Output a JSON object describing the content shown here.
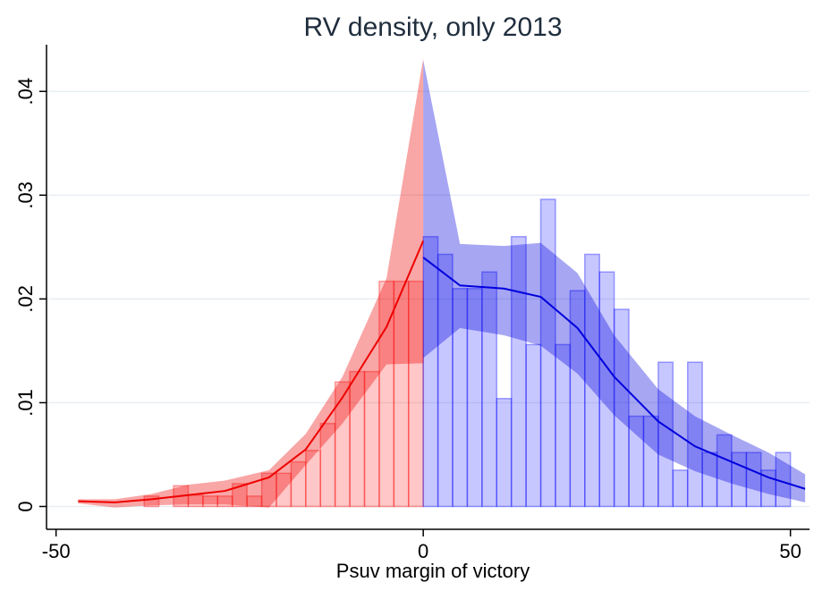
{
  "chart_data": {
    "type": "rd-density",
    "title": "RV density, only 2013",
    "x_label": "Psuv margin of victory",
    "xlim": [
      -51.3,
      52.6
    ],
    "ylim": [
      -0.0022,
      0.0445
    ],
    "xticks": [
      -50,
      0,
      50
    ],
    "yticks": [
      0,
      {
        "value": 0.01,
        "label": ".01"
      },
      {
        "value": 0.02,
        "label": ".02"
      },
      {
        "value": 0.03,
        "label": ".03"
      },
      {
        "value": 0.04,
        "label": ".04"
      }
    ],
    "grid": true,
    "bars": [
      {
        "color": "#ff0000",
        "bins": [
          -38,
          -36,
          -34,
          -32,
          -30,
          -28,
          -26,
          -24,
          -22,
          -20,
          -18,
          -16,
          -14,
          -12,
          -10,
          -8,
          -6,
          -4,
          -2,
          0
        ],
        "values": [
          0.001,
          0,
          0.002,
          0.0011,
          0.001,
          0.001,
          0.0022,
          0.001,
          0.0032,
          0.0032,
          0.0043,
          0.0054,
          0.008,
          0.012,
          0.013,
          0.013,
          0.0217,
          0.0217,
          0.0217
        ]
      },
      {
        "color": "#0000ff",
        "bins": [
          0,
          2,
          4,
          6,
          8,
          10,
          12,
          14,
          16,
          18,
          20,
          22,
          24,
          26,
          28,
          30,
          32,
          34,
          36,
          38,
          40,
          42,
          44,
          46,
          48,
          50
        ],
        "values": [
          0.026,
          0.0243,
          0.021,
          0.021,
          0.0226,
          0.0104,
          0.026,
          0.0156,
          0.0296,
          0.0156,
          0.0208,
          0.0243,
          0.0226,
          0.019,
          0.0087,
          0.0087,
          0.0139,
          0.0035,
          0.0139,
          0.0052,
          0.0069,
          0.0052,
          0.0052,
          0.0035,
          0.0052
        ]
      }
    ],
    "fits": [
      {
        "color": "#ee0000",
        "x": [
          -47,
          -42,
          -37,
          -32,
          -27,
          -21,
          -16,
          -11,
          -5,
          0
        ],
        "values": [
          0.0005,
          0.0004,
          0.0007,
          0.0011,
          0.0015,
          0.0028,
          0.0055,
          0.0105,
          0.0173,
          0.0256
        ],
        "lower": [
          0.0003,
          -0.0001,
          0.0001,
          0.0002,
          0.0002,
          -0.0001,
          0.004,
          0.008,
          0.0137,
          0.0138
        ],
        "upper": [
          0.0007,
          0.0007,
          0.0012,
          0.0021,
          0.0025,
          0.0035,
          0.007,
          0.0125,
          0.022,
          0.0432
        ]
      },
      {
        "color": "#0000dd",
        "x": [
          0,
          5,
          11,
          16,
          21,
          26,
          32,
          37,
          42,
          47,
          52
        ],
        "values": [
          0.024,
          0.0213,
          0.021,
          0.0202,
          0.0172,
          0.0125,
          0.0082,
          0.0058,
          0.0043,
          0.0028,
          0.0017
        ],
        "lower": [
          0.0143,
          0.0172,
          0.0165,
          0.0155,
          0.0128,
          0.0088,
          0.005,
          0.0034,
          0.0022,
          0.0012,
          0.0004
        ],
        "upper": [
          0.043,
          0.0253,
          0.0251,
          0.0254,
          0.0225,
          0.0165,
          0.0113,
          0.0087,
          0.0069,
          0.0052,
          0.0031
        ]
      }
    ]
  }
}
